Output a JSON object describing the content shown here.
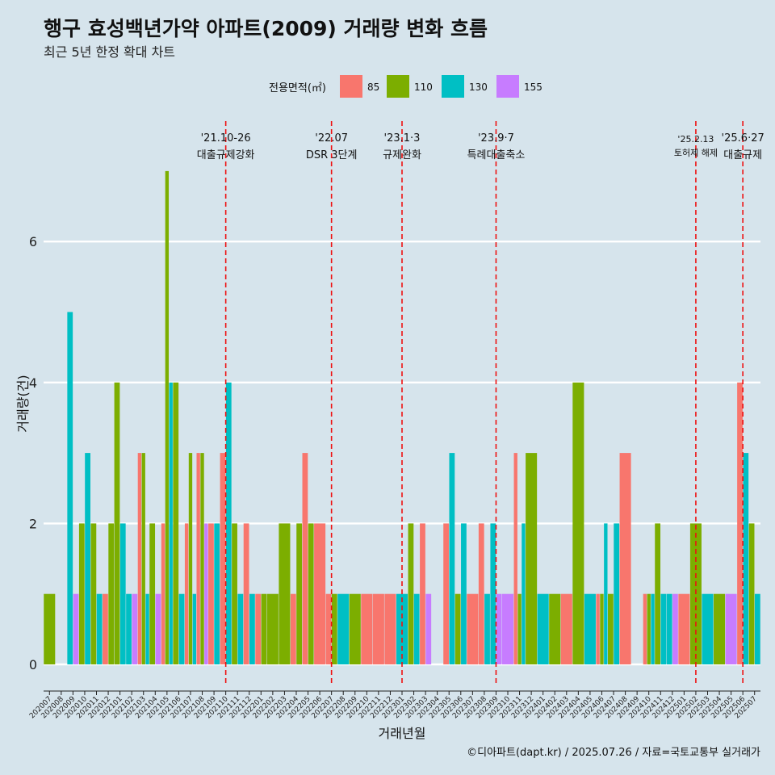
{
  "chart_data": {
    "type": "bar",
    "title": "행구 효성백년가약 아파트(2009) 거래량 변화 흐름",
    "subtitle": "최근 5년 한정 확대 차트",
    "xlabel": "거래년월",
    "ylabel": "거래량(건)",
    "ylim": [
      0,
      7.2
    ],
    "yticks": [
      0,
      2,
      4,
      6
    ],
    "grid": true,
    "caption": "©디아파트(dapt.kr) / 2025.07.26 / 자료=국토교통부 실거래가",
    "legend": {
      "title": "전용면적(㎡)",
      "position": "top",
      "entries": [
        {
          "name": "85",
          "color": "#f8766d"
        },
        {
          "name": "110",
          "color": "#7cae00"
        },
        {
          "name": "130",
          "color": "#00bfc4"
        },
        {
          "name": "155",
          "color": "#c77cff"
        }
      ]
    },
    "months": [
      "202007",
      "202008",
      "202009",
      "202010",
      "202011",
      "202012",
      "202101",
      "202102",
      "202103",
      "202104",
      "202105",
      "202106",
      "202107",
      "202108",
      "202109",
      "202110",
      "202111",
      "202112",
      "202201",
      "202202",
      "202203",
      "202204",
      "202205",
      "202206",
      "202207",
      "202208",
      "202209",
      "202210",
      "202211",
      "202212",
      "202301",
      "202302",
      "202303",
      "202304",
      "202305",
      "202306",
      "202307",
      "202308",
      "202309",
      "202310",
      "202311",
      "202312",
      "202401",
      "202402",
      "202403",
      "202404",
      "202405",
      "202406",
      "202407",
      "202408",
      "202409",
      "202410",
      "202411",
      "202412",
      "202501",
      "202502",
      "202503",
      "202504",
      "202505",
      "202506",
      "202507"
    ],
    "series": [
      {
        "name": "85",
        "color": "#f8766d",
        "values": [
          0,
          0,
          0,
          0,
          0,
          1,
          0,
          0,
          3,
          0,
          2,
          0,
          2,
          3,
          2,
          3,
          0,
          2,
          1,
          0,
          0,
          1,
          3,
          2,
          1,
          0,
          0,
          1,
          1,
          1,
          0,
          0,
          2,
          0,
          2,
          0,
          1,
          2,
          0,
          0,
          3,
          0,
          0,
          0,
          1,
          0,
          0,
          1,
          0,
          3,
          0,
          1,
          0,
          0,
          1,
          0,
          0,
          0,
          0,
          4,
          0
        ]
      },
      {
        "name": "110",
        "color": "#7cae00",
        "values": [
          1,
          0,
          0,
          2,
          2,
          2,
          4,
          0,
          3,
          2,
          7,
          4,
          3,
          3,
          0,
          0,
          2,
          0,
          1,
          1,
          2,
          2,
          2,
          0,
          1,
          0,
          1,
          0,
          0,
          0,
          0,
          2,
          0,
          0,
          0,
          1,
          0,
          0,
          0,
          0,
          1,
          3,
          0,
          1,
          0,
          4,
          0,
          1,
          1,
          0,
          0,
          1,
          2,
          0,
          0,
          2,
          0,
          1,
          0,
          0,
          2
        ]
      },
      {
        "name": "130",
        "color": "#00bfc4",
        "values": [
          0,
          0,
          5,
          3,
          1,
          0,
          2,
          1,
          1,
          0,
          4,
          1,
          1,
          0,
          2,
          4,
          1,
          1,
          0,
          0,
          0,
          0,
          0,
          0,
          0,
          1,
          0,
          0,
          0,
          0,
          1,
          1,
          0,
          0,
          3,
          2,
          0,
          1,
          2,
          0,
          2,
          0,
          1,
          0,
          0,
          0,
          1,
          2,
          2,
          0,
          0,
          1,
          1,
          1,
          0,
          0,
          1,
          0,
          0,
          3,
          1
        ]
      },
      {
        "name": "155",
        "color": "#c77cff",
        "values": [
          0,
          0,
          1,
          0,
          0,
          0,
          0,
          1,
          0,
          1,
          0,
          0,
          0,
          2,
          0,
          0,
          0,
          0,
          0,
          0,
          0,
          0,
          0,
          0,
          0,
          0,
          0,
          0,
          0,
          0,
          0,
          0,
          1,
          0,
          0,
          0,
          0,
          0,
          1,
          1,
          0,
          0,
          0,
          0,
          0,
          0,
          0,
          0,
          0,
          0,
          0,
          0,
          0,
          1,
          0,
          0,
          0,
          0,
          1,
          0,
          0
        ]
      }
    ],
    "annotations": [
      {
        "x": 15.5,
        "date": "'21.10-26",
        "label": "대출규제강화",
        "small": false
      },
      {
        "x": 24.5,
        "date": "'22.07",
        "label": "DSR 3단계",
        "small": false
      },
      {
        "x": 30.5,
        "date": "'23.1·3",
        "label": "규제완화",
        "small": false
      },
      {
        "x": 38.5,
        "date": "'23.9·7",
        "label": "특례대출축소",
        "small": false
      },
      {
        "x": 55.5,
        "date": "'25.2.13",
        "label": "토허제 해제",
        "small": true
      },
      {
        "x": 59.5,
        "date": "'25.6·27",
        "label": "대출규제",
        "small": false
      }
    ]
  }
}
